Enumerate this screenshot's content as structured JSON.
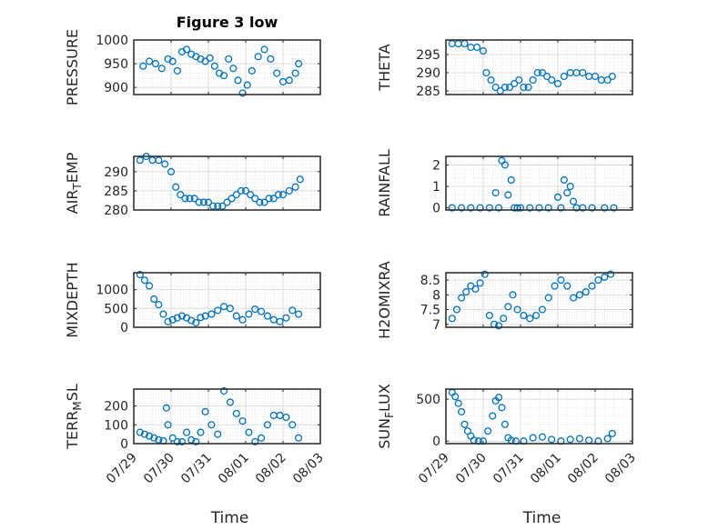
{
  "figure_title": "Figure 3 low",
  "marker_color": "#0072BD",
  "date_ticks": [
    "07/29",
    "07/30",
    "07/31",
    "08/01",
    "08/02",
    "08/03"
  ],
  "chart_data": [
    {
      "type": "scatter",
      "id": "pressure",
      "title": "Figure 3 low",
      "ylabel": "PRESSURE",
      "xlabel": "",
      "ylim": [
        885,
        1000
      ],
      "yticks": [
        900,
        950,
        1000
      ],
      "xlim": [
        "07/29",
        "08/03"
      ],
      "grid": true,
      "x": [
        "07/29 06:00",
        "07/29 10:00",
        "07/29 14:00",
        "07/29 18:00",
        "07/29 22:00",
        "07/30 01:00",
        "07/30 04:00",
        "07/30 07:00",
        "07/30 10:00",
        "07/30 13:00",
        "07/30 16:00",
        "07/30 19:00",
        "07/30 22:00",
        "07/31 01:00",
        "07/31 04:00",
        "07/31 07:00",
        "07/31 10:00",
        "07/31 13:00",
        "07/31 16:00",
        "07/31 19:00",
        "07/31 22:00",
        "08/01 01:00",
        "08/01 04:00",
        "08/01 08:00",
        "08/01 12:00",
        "08/01 16:00",
        "08/01 20:00",
        "08/02 00:00",
        "08/02 04:00",
        "08/02 08:00",
        "08/02 10:00"
      ],
      "y": [
        945,
        955,
        950,
        940,
        960,
        955,
        935,
        975,
        980,
        970,
        965,
        960,
        955,
        962,
        945,
        930,
        925,
        960,
        940,
        915,
        888,
        905,
        935,
        965,
        980,
        960,
        930,
        912,
        915,
        930,
        950
      ]
    },
    {
      "type": "scatter",
      "id": "theta",
      "title": "",
      "ylabel": "THETA",
      "xlabel": "",
      "ylim": [
        284,
        299
      ],
      "yticks": [
        285,
        290,
        295
      ],
      "xlim": [
        "07/29",
        "08/03"
      ],
      "grid": true,
      "x": [
        "07/29 04:00",
        "07/29 08:00",
        "07/29 12:00",
        "07/29 16:00",
        "07/29 20:00",
        "07/30 00:00",
        "07/30 02:00",
        "07/30 05:00",
        "07/30 08:00",
        "07/30 11:00",
        "07/30 14:00",
        "07/30 17:00",
        "07/30 20:00",
        "07/30 23:00",
        "07/31 02:00",
        "07/31 05:00",
        "07/31 08:00",
        "07/31 11:00",
        "07/31 14:00",
        "07/31 17:00",
        "07/31 20:00",
        "08/01 00:00",
        "08/01 04:00",
        "08/01 08:00",
        "08/01 12:00",
        "08/01 16:00",
        "08/01 20:00",
        "08/02 00:00",
        "08/02 04:00",
        "08/02 08:00",
        "08/02 11:00"
      ],
      "y": [
        298,
        298,
        298,
        297,
        297,
        296,
        290,
        288,
        286,
        285,
        286,
        286,
        287,
        288,
        286,
        286,
        288,
        290,
        290,
        289,
        288,
        287,
        289,
        290,
        290,
        290,
        289,
        289,
        288,
        288,
        289
      ]
    },
    {
      "type": "scatter",
      "id": "air_temp",
      "title": "",
      "ylabel": "AIR_TEMP",
      "xlabel": "",
      "ylim": [
        280,
        294
      ],
      "yticks": [
        280,
        285,
        290
      ],
      "xlim": [
        "07/29",
        "08/03"
      ],
      "grid": true,
      "x": [
        "07/29 04:00",
        "07/29 08:00",
        "07/29 12:00",
        "07/29 16:00",
        "07/29 20:00",
        "07/30 00:00",
        "07/30 03:00",
        "07/30 06:00",
        "07/30 09:00",
        "07/30 12:00",
        "07/30 15:00",
        "07/30 18:00",
        "07/30 21:00",
        "07/31 00:00",
        "07/31 03:00",
        "07/31 06:00",
        "07/31 09:00",
        "07/31 12:00",
        "07/31 15:00",
        "07/31 18:00",
        "07/31 21:00",
        "08/01 00:00",
        "08/01 03:00",
        "08/01 06:00",
        "08/01 09:00",
        "08/01 12:00",
        "08/01 15:00",
        "08/01 18:00",
        "08/01 21:00",
        "08/02 00:00",
        "08/02 04:00",
        "08/02 08:00",
        "08/02 11:00"
      ],
      "y": [
        293,
        294,
        293,
        293,
        292,
        290,
        286,
        284,
        283,
        283,
        283,
        282,
        282,
        282,
        281,
        281,
        281,
        282,
        283,
        284,
        285,
        285,
        284,
        283,
        282,
        282,
        283,
        283,
        284,
        284,
        285,
        286,
        288
      ]
    },
    {
      "type": "scatter",
      "id": "rainfall",
      "title": "",
      "ylabel": "RAINFALL",
      "xlabel": "",
      "ylim": [
        -0.1,
        2.4
      ],
      "yticks": [
        0,
        1,
        2
      ],
      "xlim": [
        "07/29",
        "08/03"
      ],
      "grid": true,
      "x": [
        "07/29 04:00",
        "07/29 10:00",
        "07/29 16:00",
        "07/29 22:00",
        "07/30 04:00",
        "07/30 08:00",
        "07/30 10:00",
        "07/30 12:00",
        "07/30 14:00",
        "07/30 16:00",
        "07/30 18:00",
        "07/30 20:00",
        "07/30 22:00",
        "07/31 00:00",
        "07/31 06:00",
        "07/31 12:00",
        "07/31 18:00",
        "08/01 00:00",
        "08/01 02:00",
        "08/01 04:00",
        "08/01 06:00",
        "08/01 08:00",
        "08/01 10:00",
        "08/01 12:00",
        "08/01 16:00",
        "08/01 22:00",
        "08/02 06:00",
        "08/02 12:00"
      ],
      "y": [
        0,
        0,
        0,
        0,
        0,
        0.7,
        0,
        2.2,
        2.0,
        0.6,
        1.3,
        0,
        0,
        0,
        0,
        0,
        0,
        0.5,
        0,
        1.3,
        0.7,
        1.0,
        0.3,
        0,
        0,
        0,
        0,
        0
      ]
    },
    {
      "type": "scatter",
      "id": "mixdepth",
      "title": "",
      "ylabel": "MIXDEPTH",
      "xlabel": "",
      "ylim": [
        0,
        1450
      ],
      "yticks": [
        0,
        500,
        1000
      ],
      "xlim": [
        "07/29",
        "08/03"
      ],
      "grid": true,
      "x": [
        "07/29 04:00",
        "07/29 07:00",
        "07/29 10:00",
        "07/29 13:00",
        "07/29 16:00",
        "07/29 19:00",
        "07/29 22:00",
        "07/30 01:00",
        "07/30 04:00",
        "07/30 07:00",
        "07/30 10:00",
        "07/30 13:00",
        "07/30 16:00",
        "07/30 19:00",
        "07/30 22:00",
        "07/31 02:00",
        "07/31 06:00",
        "07/31 10:00",
        "07/31 14:00",
        "07/31 18:00",
        "07/31 22:00",
        "08/01 02:00",
        "08/01 06:00",
        "08/01 10:00",
        "08/01 14:00",
        "08/01 18:00",
        "08/01 22:00",
        "08/02 02:00",
        "08/02 06:00",
        "08/02 10:00"
      ],
      "y": [
        1400,
        1250,
        1100,
        750,
        600,
        350,
        150,
        200,
        250,
        300,
        250,
        180,
        120,
        260,
        300,
        350,
        450,
        550,
        500,
        300,
        200,
        350,
        480,
        420,
        300,
        200,
        150,
        250,
        450,
        350
      ]
    },
    {
      "type": "scatter",
      "id": "h2omixra",
      "title": "",
      "ylabel": "H2OMIXRA",
      "xlabel": "",
      "ylim": [
        6.9,
        8.75
      ],
      "yticks": [
        7,
        7.5,
        8,
        8.5
      ],
      "xlim": [
        "07/29",
        "08/03"
      ],
      "grid": true,
      "x": [
        "07/29 04:00",
        "07/29 07:00",
        "07/29 10:00",
        "07/29 13:00",
        "07/29 16:00",
        "07/29 19:00",
        "07/29 22:00",
        "07/30 01:00",
        "07/30 04:00",
        "07/30 07:00",
        "07/30 10:00",
        "07/30 13:00",
        "07/30 16:00",
        "07/30 19:00",
        "07/30 22:00",
        "07/31 02:00",
        "07/31 06:00",
        "07/31 10:00",
        "07/31 14:00",
        "07/31 18:00",
        "07/31 22:00",
        "08/01 02:00",
        "08/01 06:00",
        "08/01 10:00",
        "08/01 14:00",
        "08/01 18:00",
        "08/01 22:00",
        "08/02 02:00",
        "08/02 06:00",
        "08/02 10:00"
      ],
      "y": [
        7.2,
        7.5,
        7.9,
        8.1,
        8.3,
        8.2,
        8.4,
        8.7,
        7.3,
        7.0,
        6.95,
        7.2,
        7.6,
        8.0,
        7.5,
        7.3,
        7.2,
        7.3,
        7.5,
        7.9,
        8.3,
        8.5,
        8.3,
        7.9,
        8.0,
        8.1,
        8.3,
        8.5,
        8.6,
        8.7
      ]
    },
    {
      "type": "scatter",
      "id": "terr_msl",
      "title": "",
      "ylabel": "TERR_MSL",
      "xlabel": "Time",
      "ylim": [
        0,
        290
      ],
      "yticks": [
        0,
        100,
        200
      ],
      "xlim": [
        "07/29",
        "08/03"
      ],
      "xticks": [
        "07/29",
        "07/30",
        "07/31",
        "08/01",
        "08/02",
        "08/03"
      ],
      "grid": true,
      "x": [
        "07/29 04:00",
        "07/29 07:00",
        "07/29 10:00",
        "07/29 13:00",
        "07/29 16:00",
        "07/29 19:00",
        "07/29 21:00",
        "07/29 22:00",
        "07/30 01:00",
        "07/30 04:00",
        "07/30 07:00",
        "07/30 10:00",
        "07/30 13:00",
        "07/30 16:00",
        "07/30 19:00",
        "07/30 22:00",
        "07/31 02:00",
        "07/31 06:00",
        "07/31 10:00",
        "07/31 14:00",
        "07/31 18:00",
        "07/31 22:00",
        "08/01 02:00",
        "08/01 06:00",
        "08/01 10:00",
        "08/01 14:00",
        "08/01 18:00",
        "08/01 22:00",
        "08/02 02:00",
        "08/02 06:00",
        "08/02 10:00"
      ],
      "y": [
        60,
        50,
        40,
        30,
        20,
        15,
        190,
        100,
        30,
        10,
        10,
        60,
        20,
        10,
        60,
        170,
        100,
        50,
        280,
        220,
        160,
        120,
        60,
        10,
        30,
        100,
        150,
        150,
        140,
        100,
        30
      ]
    },
    {
      "type": "scatter",
      "id": "sun_flux",
      "title": "",
      "ylabel": "SUN_FLUX",
      "xlabel": "Time",
      "ylim": [
        -30,
        620
      ],
      "yticks": [
        0,
        500
      ],
      "xlim": [
        "07/29",
        "08/03"
      ],
      "xticks": [
        "07/29",
        "07/30",
        "07/31",
        "08/01",
        "08/02",
        "08/03"
      ],
      "grid": true,
      "x": [
        "07/29 04:00",
        "07/29 06:00",
        "07/29 08:00",
        "07/29 10:00",
        "07/29 12:00",
        "07/29 14:00",
        "07/29 16:00",
        "07/29 18:00",
        "07/29 21:00",
        "07/30 00:00",
        "07/30 03:00",
        "07/30 06:00",
        "07/30 08:00",
        "07/30 10:00",
        "07/30 12:00",
        "07/30 14:00",
        "07/30 16:00",
        "07/30 18:00",
        "07/30 21:00",
        "07/31 02:00",
        "07/31 08:00",
        "07/31 14:00",
        "07/31 20:00",
        "08/01 02:00",
        "08/01 08:00",
        "08/01 14:00",
        "08/01 20:00",
        "08/02 02:00",
        "08/02 08:00",
        "08/02 11:00"
      ],
      "y": [
        580,
        530,
        450,
        350,
        200,
        120,
        60,
        10,
        0,
        0,
        120,
        300,
        480,
        520,
        400,
        200,
        40,
        10,
        0,
        0,
        40,
        50,
        20,
        0,
        20,
        30,
        10,
        0,
        30,
        90
      ]
    }
  ]
}
